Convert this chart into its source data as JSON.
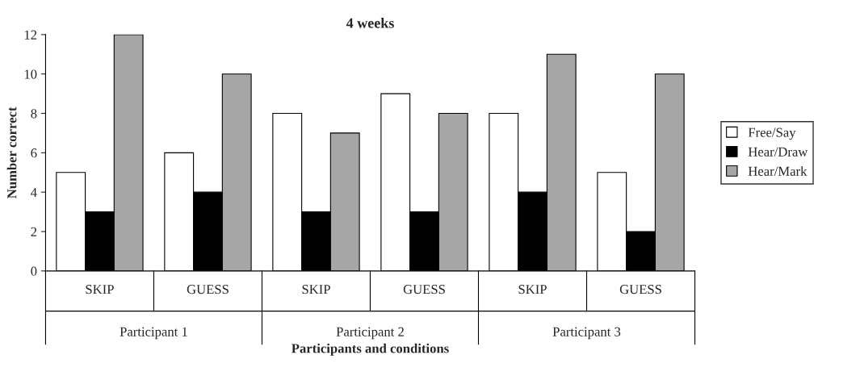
{
  "chart_data": {
    "type": "bar",
    "title": "4 weeks",
    "xlabel": "Participants and conditions",
    "ylabel": "Number correct",
    "categories": [
      "SKIP",
      "GUESS",
      "SKIP",
      "GUESS",
      "SKIP",
      "GUESS"
    ],
    "series": [
      {
        "name": "Free/Say",
        "color": "#ffffff",
        "values": [
          5,
          6,
          8,
          9,
          8,
          5
        ]
      },
      {
        "name": "Hear/Draw",
        "color": "#000000",
        "values": [
          3,
          4,
          3,
          3,
          4,
          2
        ]
      },
      {
        "name": "Hear/Mark",
        "color": "#a6a6a6",
        "values": [
          12,
          10,
          7,
          8,
          11,
          10
        ]
      }
    ],
    "annotations": [
      "Participant 1",
      "Participant 2",
      "Participant 3"
    ],
    "ylim": [
      0,
      12
    ],
    "yticks": [
      0,
      2,
      4,
      6,
      8,
      10,
      12
    ],
    "grid": false,
    "legend": "right"
  }
}
